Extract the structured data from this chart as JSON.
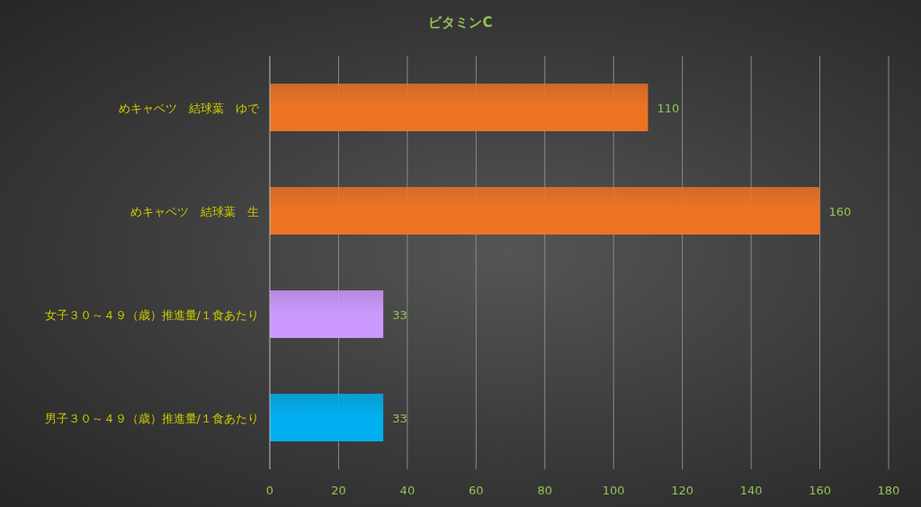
{
  "chart_data": {
    "type": "bar",
    "title": "ビタミンC",
    "orientation": "horizontal",
    "categories": [
      "めキャベツ　結球葉　ゆで",
      "めキャベツ　結球葉　生",
      "女子３０～４９（歳）推進量/１食あたり",
      "男子３０～４９（歳）推進量/１食あたり"
    ],
    "values": [
      110,
      160,
      33,
      33
    ],
    "colors": [
      "#ee7424",
      "#ee7424",
      "#cc99ff",
      "#00b0f0"
    ],
    "xlim": [
      0,
      180
    ],
    "xticks": [
      0,
      20,
      40,
      60,
      80,
      100,
      120,
      140,
      160,
      180
    ],
    "grid": "x",
    "data_labels": true
  }
}
